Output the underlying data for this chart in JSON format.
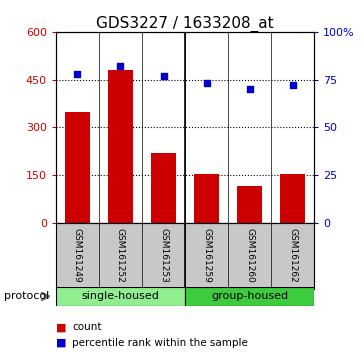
{
  "title": "GDS3227 / 1633208_at",
  "samples": [
    "GSM161249",
    "GSM161252",
    "GSM161253",
    "GSM161259",
    "GSM161260",
    "GSM161262"
  ],
  "counts": [
    350,
    480,
    220,
    155,
    115,
    155
  ],
  "percentiles": [
    78,
    82,
    77,
    73,
    70,
    72
  ],
  "groups": [
    {
      "label": "single-housed",
      "indices": [
        0,
        1,
        2
      ],
      "color": "#90EE90"
    },
    {
      "label": "group-housed",
      "indices": [
        3,
        4,
        5
      ],
      "color": "#3DCC3D"
    }
  ],
  "ylim_left": [
    0,
    600
  ],
  "yticks_left": [
    0,
    150,
    300,
    450,
    600
  ],
  "ylim_right": [
    0,
    100
  ],
  "yticks_right": [
    0,
    25,
    50,
    75,
    100
  ],
  "bar_color": "#CC0000",
  "dot_color": "#0000CC",
  "bar_width": 0.6,
  "title_fontsize": 11,
  "tick_fontsize": 8,
  "legend_count_label": "count",
  "legend_pct_label": "percentile rank within the sample",
  "protocol_label": "protocol",
  "tick_label_color_left": "#CC0000",
  "tick_label_color_right": "#0000CC",
  "group_separator": 2.5,
  "xlim": [
    -0.5,
    5.5
  ]
}
